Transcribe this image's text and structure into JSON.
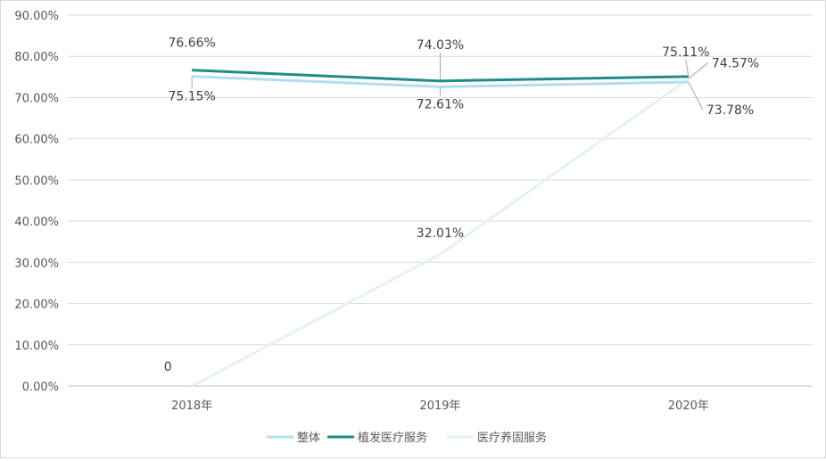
{
  "chart_data": {
    "type": "line",
    "title": "",
    "xlabel": "",
    "ylabel": "",
    "categories": [
      "2018年",
      "2019年",
      "2020年"
    ],
    "ylim": [
      0,
      90
    ],
    "y_ticks": [
      "0.00%",
      "10.00%",
      "20.00%",
      "30.00%",
      "40.00%",
      "50.00%",
      "60.00%",
      "70.00%",
      "80.00%",
      "90.00%"
    ],
    "grid": true,
    "legend_position": "bottom",
    "series": [
      {
        "name": "整体",
        "color": "#b4dcf2",
        "values": [
          75.15,
          72.61,
          73.78
        ],
        "labels": [
          "75.15%",
          "72.61%",
          "73.78%"
        ]
      },
      {
        "name": "植发医疗服务",
        "color": "#1f8c86",
        "values": [
          76.66,
          74.03,
          75.11
        ],
        "labels": [
          "76.66%",
          "74.03%",
          "75.11%"
        ]
      },
      {
        "name": "医疗养固服务",
        "color": "#e3f3f0",
        "values": [
          0,
          32.01,
          74.57
        ],
        "labels": [
          "0",
          "32.01%",
          "74.57%"
        ]
      }
    ]
  }
}
